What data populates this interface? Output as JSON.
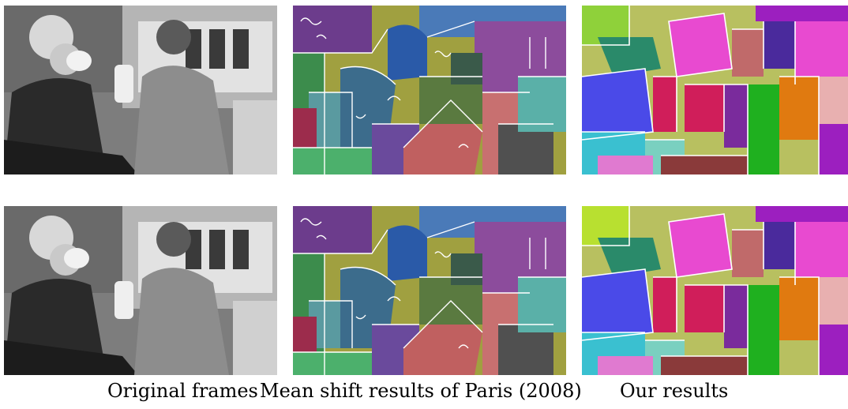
{
  "captions": {
    "original": "Original frames",
    "mean_shift": "Mean shift results of Paris (2008)",
    "ours": "Our results"
  },
  "rows": [
    {
      "row": 1,
      "panels": [
        "original-frame",
        "mean-shift-segmentation",
        "our-segmentation"
      ]
    },
    {
      "row": 2,
      "panels": [
        "original-frame",
        "mean-shift-segmentation",
        "our-segmentation"
      ]
    }
  ],
  "colors": {
    "background": "#ffffff",
    "grayscale_bg": "#8a8a8a",
    "segment_palette": [
      "#4a4ae8",
      "#8fd13a",
      "#e84ad0",
      "#b8c060",
      "#1fb01f",
      "#7a2b9c",
      "#e07a10",
      "#d01e5a",
      "#2a8a6a",
      "#9c1fbf",
      "#c06a6a",
      "#3ac0d0"
    ],
    "mean_shift_palette": [
      "#3c8c4c",
      "#5a9aa0",
      "#9c4c5c",
      "#2a5aa8",
      "#a0a040",
      "#c87070",
      "#505050",
      "#6c3c8c",
      "#4cb06c",
      "#8c6c3c"
    ]
  }
}
